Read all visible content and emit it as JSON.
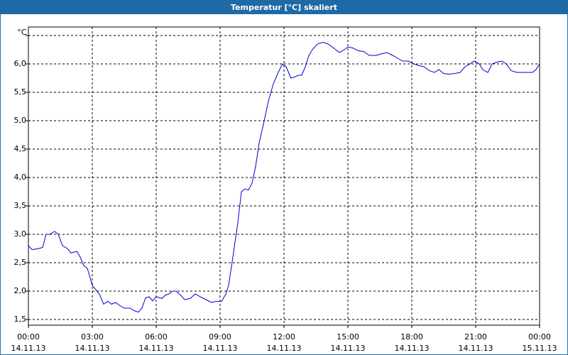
{
  "chart_data": {
    "type": "line",
    "title": "Temperatur [°C] skaliert",
    "y_unit": "°C",
    "xlim": [
      0,
      24
    ],
    "ylim": [
      1.4,
      6.65
    ],
    "grid": true,
    "xticks": [
      {
        "value": 0,
        "label": "00:00",
        "date": "14.11.13"
      },
      {
        "value": 3,
        "label": "03:00",
        "date": "14.11.13"
      },
      {
        "value": 6,
        "label": "06:00",
        "date": "14.11.13"
      },
      {
        "value": 9,
        "label": "09:00",
        "date": "14.11.13"
      },
      {
        "value": 12,
        "label": "12:00",
        "date": "14.11.13"
      },
      {
        "value": 15,
        "label": "15:00",
        "date": "14.11.13"
      },
      {
        "value": 18,
        "label": "18:00",
        "date": "14.11.13"
      },
      {
        "value": 21,
        "label": "21:00",
        "date": "14.11.13"
      },
      {
        "value": 24,
        "label": "00:00",
        "date": "15.11.13"
      }
    ],
    "yticks": [
      {
        "value": 1.5,
        "label": "1,5"
      },
      {
        "value": 2,
        "label": "2,0"
      },
      {
        "value": 2.5,
        "label": "2,5"
      },
      {
        "value": 3,
        "label": "3,0"
      },
      {
        "value": 3.5,
        "label": "3,5"
      },
      {
        "value": 4,
        "label": "4,0"
      },
      {
        "value": 4.5,
        "label": "4,5"
      },
      {
        "value": 5,
        "label": "5,0"
      },
      {
        "value": 5.5,
        "label": "5,5"
      },
      {
        "value": 6,
        "label": "6,0"
      },
      {
        "value": 6.5,
        "label": null
      }
    ],
    "series": [
      {
        "color": "#0000cc",
        "x": [
          0,
          0.17,
          0.5,
          0.67,
          0.83,
          1,
          1.23,
          1.4,
          1.6,
          1.83,
          2,
          2.27,
          2.43,
          2.6,
          2.77,
          3,
          3.33,
          3.53,
          3.73,
          3.9,
          4.1,
          4.27,
          4.5,
          4.77,
          5,
          5.17,
          5.33,
          5.5,
          5.67,
          5.83,
          6,
          6.27,
          6.43,
          6.6,
          6.77,
          6.93,
          7.17,
          7.33,
          7.6,
          7.83,
          8.07,
          8.33,
          8.6,
          8.83,
          9.07,
          9.27,
          9.4,
          9.6,
          9.83,
          10,
          10.17,
          10.33,
          10.5,
          10.67,
          10.83,
          11.07,
          11.27,
          11.5,
          11.73,
          11.93,
          12.1,
          12.33,
          12.5,
          12.67,
          12.83,
          13,
          13.17,
          13.33,
          13.57,
          13.83,
          14.07,
          14.33,
          14.6,
          14.83,
          15,
          15.23,
          15.5,
          15.73,
          16,
          16.33,
          16.6,
          16.83,
          17.1,
          17.33,
          17.57,
          17.83,
          18.1,
          18.33,
          18.57,
          18.83,
          19.07,
          19.27,
          19.5,
          19.73,
          20,
          20.27,
          20.5,
          20.73,
          20.93,
          21.17,
          21.33,
          21.57,
          21.77,
          22,
          22.23,
          22.43,
          22.67,
          22.93,
          23.33,
          23.67,
          23.83,
          24
        ],
        "values": [
          2.8,
          2.73,
          2.75,
          2.77,
          3.0,
          3.0,
          3.05,
          3.0,
          2.8,
          2.75,
          2.67,
          2.7,
          2.6,
          2.45,
          2.4,
          2.1,
          1.95,
          1.77,
          1.82,
          1.77,
          1.8,
          1.75,
          1.7,
          1.7,
          1.65,
          1.63,
          1.7,
          1.88,
          1.9,
          1.83,
          1.9,
          1.87,
          1.93,
          1.95,
          2.0,
          2.0,
          1.92,
          1.85,
          1.87,
          1.95,
          1.9,
          1.85,
          1.8,
          1.82,
          1.82,
          1.95,
          2.1,
          2.6,
          3.2,
          3.75,
          3.8,
          3.78,
          3.9,
          4.2,
          4.6,
          5.0,
          5.35,
          5.65,
          5.85,
          6.0,
          5.95,
          5.75,
          5.77,
          5.8,
          5.8,
          5.95,
          6.15,
          6.25,
          6.35,
          6.38,
          6.35,
          6.28,
          6.2,
          6.25,
          6.3,
          6.28,
          6.23,
          6.22,
          6.15,
          6.15,
          6.18,
          6.2,
          6.15,
          6.1,
          6.05,
          6.05,
          6.0,
          5.97,
          5.95,
          5.88,
          5.85,
          5.9,
          5.83,
          5.82,
          5.83,
          5.85,
          5.95,
          6.0,
          6.05,
          6.0,
          5.9,
          5.85,
          6.0,
          6.03,
          6.05,
          6.0,
          5.88,
          5.85,
          5.85,
          5.85,
          5.9,
          6.0
        ]
      }
    ]
  }
}
